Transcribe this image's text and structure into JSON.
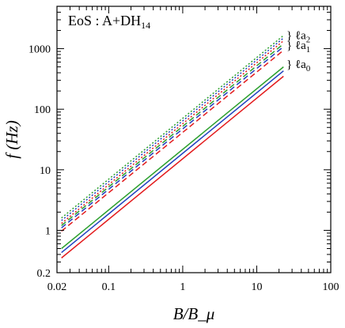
{
  "chart_data": {
    "type": "line",
    "x_scale": "log",
    "y_scale": "log",
    "xlim": [
      0.02,
      100
    ],
    "ylim": [
      0.2,
      5000
    ],
    "xlabel": "B/B_μ",
    "ylabel": "f (Hz)",
    "x_ticks": [
      {
        "value": 0.02,
        "label": "0.02"
      },
      {
        "value": 0.1,
        "label": "0.1"
      },
      {
        "value": 1,
        "label": "1"
      },
      {
        "value": 10,
        "label": "10"
      },
      {
        "value": 100,
        "label": "100"
      }
    ],
    "y_ticks": [
      {
        "value": 0.2,
        "label": "0.2"
      },
      {
        "value": 1,
        "label": "1"
      },
      {
        "value": 10,
        "label": "10"
      },
      {
        "value": 100,
        "label": "100"
      },
      {
        "value": 1000,
        "label": "1000"
      }
    ],
    "annotation": {
      "main": "EoS : A+DH",
      "subscript": "14"
    },
    "groups": [
      {
        "text": "} ℓa",
        "sub": "2",
        "value": 1680
      },
      {
        "text": "} ℓa",
        "sub": "1",
        "value": 1150
      },
      {
        "text": "} ℓa",
        "sub": "0",
        "value": 560
      }
    ],
    "colors": {
      "green": "#2ca02c",
      "blue": "#1f3fbf",
      "red": "#e31a1c"
    },
    "series": [
      {
        "style": "dotted",
        "color": "#2ca02c",
        "x": [
          0.023,
          23
        ],
        "y": [
          1.6,
          1650
        ]
      },
      {
        "style": "dotted",
        "color": "#1f3fbf",
        "x": [
          0.023,
          23
        ],
        "y": [
          1.45,
          1500
        ]
      },
      {
        "style": "dotted",
        "color": "#e31a1c",
        "x": [
          0.023,
          23
        ],
        "y": [
          1.3,
          1350
        ]
      },
      {
        "style": "dashed",
        "color": "#2ca02c",
        "x": [
          0.023,
          23
        ],
        "y": [
          1.2,
          1200
        ]
      },
      {
        "style": "dashed",
        "color": "#1f3fbf",
        "x": [
          0.023,
          23
        ],
        "y": [
          1.1,
          1080
        ]
      },
      {
        "style": "dashed",
        "color": "#e31a1c",
        "x": [
          0.023,
          23
        ],
        "y": [
          0.97,
          940
        ]
      },
      {
        "style": "solid",
        "color": "#2ca02c",
        "x": [
          0.023,
          23
        ],
        "y": [
          0.5,
          500
        ]
      },
      {
        "style": "solid",
        "color": "#1f3fbf",
        "x": [
          0.023,
          23
        ],
        "y": [
          0.43,
          430
        ]
      },
      {
        "style": "solid",
        "color": "#e31a1c",
        "x": [
          0.023,
          23
        ],
        "y": [
          0.35,
          350
        ]
      }
    ]
  }
}
